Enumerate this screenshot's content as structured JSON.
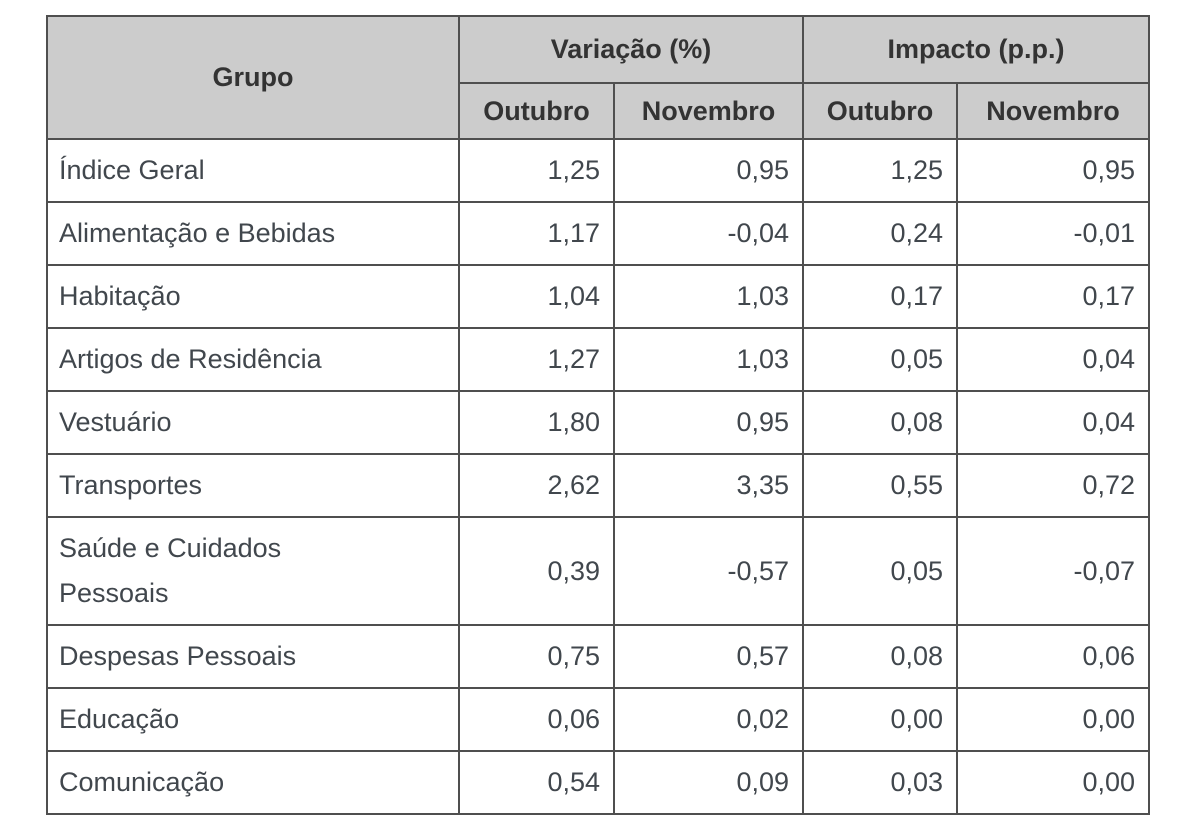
{
  "table": {
    "header": {
      "grupo": "Grupo",
      "groups": [
        {
          "label": "Variação (%)",
          "subcolumns": [
            "Outubro",
            "Novembro"
          ]
        },
        {
          "label": "Impacto (p.p.)",
          "subcolumns": [
            "Outubro",
            "Novembro"
          ]
        }
      ]
    },
    "rows": [
      {
        "grupo": "Índice Geral",
        "values": [
          "1,25",
          "0,95",
          "1,25",
          "0,95"
        ]
      },
      {
        "grupo": "Alimentação e Bebidas",
        "values": [
          "1,17",
          "-0,04",
          "0,24",
          "-0,01"
        ]
      },
      {
        "grupo": "Habitação",
        "values": [
          "1,04",
          "1,03",
          "0,17",
          "0,17"
        ]
      },
      {
        "grupo": "Artigos de Residência",
        "values": [
          "1,27",
          "1,03",
          "0,05",
          "0,04"
        ]
      },
      {
        "grupo": "Vestuário",
        "values": [
          "1,80",
          "0,95",
          "0,08",
          "0,04"
        ]
      },
      {
        "grupo": "Transportes",
        "values": [
          "2,62",
          "3,35",
          "0,55",
          "0,72"
        ]
      },
      {
        "grupo": "Saúde e Cuidados Pessoais",
        "values": [
          "0,39",
          "-0,57",
          "0,05",
          "-0,07"
        ]
      },
      {
        "grupo": "Despesas Pessoais",
        "values": [
          "0,75",
          "0,57",
          "0,08",
          "0,06"
        ]
      },
      {
        "grupo": "Educação",
        "values": [
          "0,06",
          "0,02",
          "0,00",
          "0,00"
        ]
      },
      {
        "grupo": "Comunicação",
        "values": [
          "0,54",
          "0,09",
          "0,03",
          "0,00"
        ]
      }
    ]
  },
  "colors": {
    "page_background": "#ffffff",
    "header_background": "#cccccc",
    "border": "#4f4f4f",
    "header_text": "#333333",
    "cell_text": "#41474d"
  },
  "chart_data": {
    "type": "table",
    "title": "",
    "columns": [
      "Grupo",
      "Variação (%) Outubro",
      "Variação (%) Novembro",
      "Impacto (p.p.) Outubro",
      "Impacto (p.p.) Novembro"
    ],
    "rows": [
      [
        "Índice Geral",
        1.25,
        0.95,
        1.25,
        0.95
      ],
      [
        "Alimentação e Bebidas",
        1.17,
        -0.04,
        0.24,
        -0.01
      ],
      [
        "Habitação",
        1.04,
        1.03,
        0.17,
        0.17
      ],
      [
        "Artigos de Residência",
        1.27,
        1.03,
        0.05,
        0.04
      ],
      [
        "Vestuário",
        1.8,
        0.95,
        0.08,
        0.04
      ],
      [
        "Transportes",
        2.62,
        3.35,
        0.55,
        0.72
      ],
      [
        "Saúde e Cuidados Pessoais",
        0.39,
        -0.57,
        0.05,
        -0.07
      ],
      [
        "Despesas Pessoais",
        0.75,
        0.57,
        0.08,
        0.06
      ],
      [
        "Educação",
        0.06,
        0.02,
        0.0,
        0.0
      ],
      [
        "Comunicação",
        0.54,
        0.09,
        0.03,
        0.0
      ]
    ],
    "notes": "Decimal comma formatting as displayed; negative values shown with leading minus sign."
  }
}
